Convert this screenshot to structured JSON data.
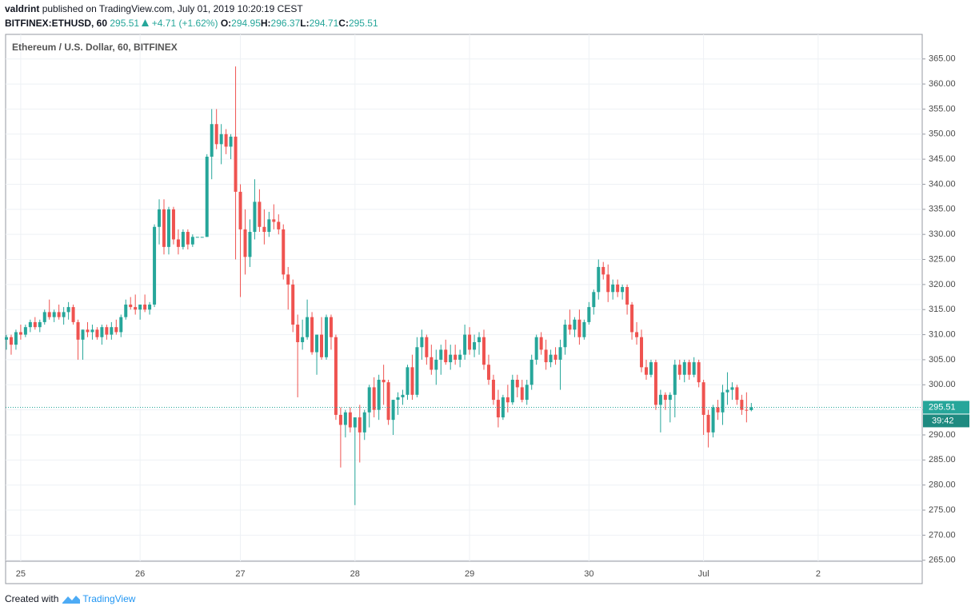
{
  "header": {
    "author": "valdrint",
    "published": "published on TradingView.com, July 01, 2019 10:20:19 CEST",
    "symbol": "BITFINEX:ETHUSD, 60",
    "price": "295.51",
    "change": "+4.71 (+1.62%)",
    "fields": [
      {
        "label": "O:",
        "value": "294.95"
      },
      {
        "label": "H:",
        "value": "296.37"
      },
      {
        "label": "L:",
        "value": "294.71"
      },
      {
        "label": "C:",
        "value": "295.51"
      }
    ]
  },
  "footer": {
    "created": "Created with",
    "brand": "TradingView"
  },
  "chart_data": {
    "type": "candlestick",
    "title": "Ethereum / U.S. Dollar, 60, BITFINEX",
    "up_color": "#26a69a",
    "down_color": "#ef5350",
    "grid": true,
    "last_price": 295.51,
    "countdown": "39:42",
    "ylim": [
      264.8,
      369.9
    ],
    "yticks": [
      {
        "value": 265,
        "label": "265.00"
      },
      {
        "value": 270,
        "label": "270.00"
      },
      {
        "value": 275,
        "label": "275.00"
      },
      {
        "value": 280,
        "label": "280.00"
      },
      {
        "value": 285,
        "label": "285.00"
      },
      {
        "value": 290,
        "label": "290.00"
      },
      {
        "value": 295,
        "label": "295.00"
      },
      {
        "value": 300,
        "label": "300.00"
      },
      {
        "value": 305,
        "label": "305.00"
      },
      {
        "value": 310,
        "label": "310.00"
      },
      {
        "value": 315,
        "label": "315.00"
      },
      {
        "value": 320,
        "label": "320.00"
      },
      {
        "value": 325,
        "label": "325.00"
      },
      {
        "value": 330,
        "label": "330.00"
      },
      {
        "value": 335,
        "label": "335.00"
      },
      {
        "value": 340,
        "label": "340.00"
      },
      {
        "value": 345,
        "label": "345.00"
      },
      {
        "value": 350,
        "label": "350.00"
      },
      {
        "value": 355,
        "label": "355.00"
      },
      {
        "value": 360,
        "label": "360.00"
      },
      {
        "value": 365,
        "label": "365.00"
      }
    ],
    "categories": [
      null,
      null,
      null,
      "25",
      null,
      null,
      null,
      null,
      null,
      null,
      null,
      null,
      null,
      null,
      null,
      null,
      null,
      null,
      null,
      null,
      null,
      null,
      null,
      null,
      null,
      null,
      null,
      null,
      "26",
      null,
      null,
      null,
      null,
      null,
      null,
      null,
      null,
      null,
      null,
      null,
      null,
      null,
      null,
      null,
      null,
      null,
      null,
      null,
      null,
      "27",
      null,
      null,
      null,
      null,
      null,
      null,
      null,
      null,
      null,
      null,
      null,
      null,
      null,
      null,
      null,
      null,
      null,
      null,
      null,
      null,
      null,
      null,
      null,
      "28",
      null,
      null,
      null,
      null,
      null,
      null,
      null,
      null,
      null,
      null,
      null,
      null,
      null,
      null,
      null,
      null,
      null,
      null,
      null,
      null,
      null,
      null,
      null,
      "29",
      null,
      null,
      null,
      null,
      null,
      null,
      null,
      null,
      null,
      null,
      null,
      null,
      null,
      null,
      null,
      null,
      null,
      null,
      null,
      null,
      null,
      null,
      null,
      null,
      "30",
      null,
      null,
      null,
      null,
      null,
      null,
      null,
      null,
      null,
      null,
      null,
      null,
      null,
      null,
      null,
      null,
      null,
      null,
      null,
      null,
      null,
      null,
      null,
      "Jul",
      null,
      null,
      null,
      null,
      null,
      null,
      null,
      null,
      null,
      null,
      null,
      null,
      null,
      null,
      null,
      null,
      null,
      null,
      null,
      null,
      null,
      null,
      null,
      "2"
    ],
    "ohlc": [
      [
        309,
        310,
        307,
        309.5
      ],
      [
        309.5,
        310,
        306,
        308
      ],
      [
        308,
        311,
        307,
        310.5
      ],
      [
        310.5,
        312,
        309,
        310
      ],
      [
        310,
        312,
        309.5,
        311.5
      ],
      [
        311.5,
        313,
        310.5,
        312.5
      ],
      [
        312.5,
        313.5,
        311,
        311.5
      ],
      [
        311.5,
        313,
        310.5,
        312.5
      ],
      [
        312.5,
        315,
        312,
        314.5
      ],
      [
        314.5,
        317,
        313,
        313.5
      ],
      [
        313.5,
        315,
        312.5,
        314.5
      ],
      [
        314.5,
        316,
        313,
        313.5
      ],
      [
        313.5,
        315.5,
        312,
        314.5
      ],
      [
        314.5,
        316.5,
        313,
        315.5
      ],
      [
        315.5,
        316,
        312,
        312.5
      ],
      [
        312.5,
        313,
        305,
        309
      ],
      [
        309,
        311,
        305,
        311
      ],
      [
        311,
        312.5,
        309.5,
        310.5
      ],
      [
        310.5,
        312,
        309,
        311
      ],
      [
        311,
        311.5,
        309,
        309.5
      ],
      [
        309.5,
        312,
        308,
        311.5
      ],
      [
        311.5,
        312,
        309,
        310
      ],
      [
        310,
        312.5,
        309,
        311.5
      ],
      [
        311.5,
        313,
        310,
        310.5
      ],
      [
        310.5,
        314,
        309.5,
        313.5
      ],
      [
        313.5,
        317,
        313,
        316
      ],
      [
        316,
        317.5,
        315,
        315.5
      ],
      [
        315.5,
        318,
        314,
        315
      ],
      [
        315,
        316,
        313,
        316
      ],
      [
        316,
        318,
        314.5,
        315
      ],
      [
        315,
        316.5,
        314,
        316
      ],
      [
        316,
        332,
        315.5,
        331.5
      ],
      [
        331.5,
        337,
        328,
        335
      ],
      [
        335,
        337,
        326,
        327.5
      ],
      [
        327.5,
        335.5,
        326,
        335
      ],
      [
        335,
        335.5,
        328,
        329
      ],
      [
        329,
        331,
        326,
        327.5
      ],
      [
        327.5,
        331,
        327,
        330.5
      ],
      [
        330.5,
        331,
        327,
        328
      ],
      [
        328,
        330,
        327.5,
        329.5
      ],
      [
        329.5,
        329.5,
        329.5,
        329.5
      ],
      [
        329.5,
        329.5,
        329.5,
        329.5
      ],
      [
        329.5,
        346,
        329.5,
        345.5
      ],
      [
        345.5,
        355,
        341,
        352
      ],
      [
        352,
        355,
        347,
        348
      ],
      [
        348,
        352,
        344,
        350
      ],
      [
        350,
        351,
        346,
        347.5
      ],
      [
        347.5,
        350,
        345,
        349.5
      ],
      [
        349.5,
        363.5,
        325,
        338.5
      ],
      [
        338.5,
        340,
        317.5,
        331
      ],
      [
        331,
        335,
        322,
        325.5
      ],
      [
        325.5,
        333,
        323.5,
        330.5
      ],
      [
        330.5,
        341,
        329,
        336.5
      ],
      [
        336.5,
        339,
        330.5,
        331.5
      ],
      [
        331.5,
        335,
        328,
        330.5
      ],
      [
        330.5,
        334.5,
        329.5,
        333
      ],
      [
        333,
        336,
        331,
        332.5
      ],
      [
        332.5,
        334,
        330,
        331
      ],
      [
        331,
        332,
        321,
        322
      ],
      [
        322,
        323.5,
        315,
        320
      ],
      [
        320,
        321,
        310.5,
        312
      ],
      [
        312,
        314,
        297.5,
        308.5
      ],
      [
        308.5,
        313,
        307,
        309.5
      ],
      [
        309.5,
        317,
        309,
        313.5
      ],
      [
        313.5,
        314.5,
        306,
        306.5
      ],
      [
        306.5,
        310,
        302,
        310
      ],
      [
        310,
        313.5,
        305,
        305.5
      ],
      [
        305.5,
        314,
        305,
        313.5
      ],
      [
        313.5,
        314,
        307,
        309.5
      ],
      [
        309.5,
        310,
        293,
        294
      ],
      [
        294,
        295.5,
        283.5,
        292
      ],
      [
        292,
        295,
        289.5,
        294.5
      ],
      [
        294.5,
        295.5,
        290.5,
        291.5
      ],
      [
        291.5,
        293,
        276,
        293.5
      ],
      [
        293.5,
        296,
        284.5,
        290.5
      ],
      [
        290.5,
        295,
        289,
        294.5
      ],
      [
        294.5,
        300,
        291.5,
        299.5
      ],
      [
        299.5,
        301.5,
        293.5,
        295
      ],
      [
        295,
        302,
        293,
        301
      ],
      [
        301,
        304,
        296,
        300.5
      ],
      [
        300.5,
        301,
        292,
        293
      ],
      [
        293,
        297,
        290,
        297
      ],
      [
        297,
        298.5,
        294,
        297.5
      ],
      [
        297.5,
        299,
        296,
        298
      ],
      [
        298,
        304,
        297,
        303.5
      ],
      [
        303.5,
        306,
        297,
        298
      ],
      [
        298,
        309.5,
        297.5,
        307.5
      ],
      [
        307.5,
        311,
        305,
        309.5
      ],
      [
        309.5,
        310,
        304,
        305.5
      ],
      [
        305.5,
        308,
        302,
        303
      ],
      [
        303,
        307,
        300,
        305
      ],
      [
        305,
        308,
        302,
        307
      ],
      [
        307,
        309,
        304,
        304.5
      ],
      [
        304.5,
        308,
        303,
        306
      ],
      [
        306,
        308,
        304,
        305
      ],
      [
        305,
        307,
        303.5,
        306
      ],
      [
        306,
        312,
        305,
        310
      ],
      [
        310,
        311.5,
        306,
        307
      ],
      [
        307,
        310,
        305.5,
        308.5
      ],
      [
        308.5,
        310.5,
        306,
        309.5
      ],
      [
        309.5,
        311,
        303,
        304
      ],
      [
        304,
        306,
        300,
        301
      ],
      [
        301,
        302,
        296,
        297
      ],
      [
        297,
        299,
        291.5,
        293.5
      ],
      [
        293.5,
        298,
        293,
        297.5
      ],
      [
        297.5,
        300,
        294.5,
        296.5
      ],
      [
        296.5,
        302,
        296,
        301
      ],
      [
        301,
        302,
        297.5,
        299.5
      ],
      [
        299.5,
        301,
        296.5,
        297
      ],
      [
        297,
        301,
        296,
        300
      ],
      [
        300,
        306,
        299,
        305
      ],
      [
        305,
        310,
        304,
        309.5
      ],
      [
        309.5,
        310.5,
        306,
        307
      ],
      [
        307,
        309,
        303,
        304.5
      ],
      [
        304.5,
        307,
        303.5,
        306
      ],
      [
        306,
        307.5,
        304,
        305
      ],
      [
        305,
        309,
        299,
        307.5
      ],
      [
        307.5,
        313,
        306,
        312
      ],
      [
        312,
        315,
        310,
        311
      ],
      [
        311,
        313.5,
        309.5,
        313
      ],
      [
        313,
        315,
        308,
        309.5
      ],
      [
        309.5,
        313,
        309,
        312.5
      ],
      [
        312.5,
        316.5,
        312,
        315.5
      ],
      [
        315.5,
        319,
        314,
        318.5
      ],
      [
        318.5,
        325,
        317,
        323.5
      ],
      [
        323.5,
        324.5,
        321,
        322
      ],
      [
        322,
        324,
        316.5,
        318.5
      ],
      [
        318.5,
        321,
        317,
        320
      ],
      [
        320,
        321,
        317.5,
        318.5
      ],
      [
        318.5,
        320,
        317,
        319.5
      ],
      [
        319.5,
        320,
        314,
        316
      ],
      [
        316,
        316.5,
        309,
        310.5
      ],
      [
        310.5,
        312.5,
        308,
        309.5
      ],
      [
        309.5,
        311,
        302.5,
        303.5
      ],
      [
        303.5,
        305,
        301,
        302
      ],
      [
        302,
        305,
        301.5,
        304.5
      ],
      [
        304.5,
        305,
        295,
        296
      ],
      [
        296,
        299,
        290.5,
        298
      ],
      [
        298,
        298.5,
        295,
        297
      ],
      [
        297,
        298.5,
        292.5,
        298
      ],
      [
        298,
        305,
        293.5,
        304
      ],
      [
        304,
        305,
        301,
        302
      ],
      [
        302,
        305,
        300.5,
        304.5
      ],
      [
        304.5,
        305,
        301,
        302
      ],
      [
        302,
        305.5,
        301.5,
        304.5
      ],
      [
        304.5,
        305,
        299.5,
        300.5
      ],
      [
        300.5,
        301,
        290,
        294
      ],
      [
        294,
        295,
        287.5,
        290.5
      ],
      [
        290.5,
        296,
        289.5,
        295.5
      ],
      [
        295.5,
        297,
        293,
        294.5
      ],
      [
        294.5,
        300,
        292,
        298.5
      ],
      [
        298.5,
        302.5,
        296,
        299
      ],
      [
        299,
        300.5,
        297,
        299.5
      ],
      [
        299.5,
        300,
        296,
        297
      ],
      [
        297,
        298,
        294,
        295
      ],
      [
        295,
        298.5,
        292.5,
        294.95
      ],
      [
        294.95,
        296.37,
        294.71,
        295.51
      ],
      null,
      null,
      null,
      null,
      null,
      null,
      null,
      null,
      null,
      null,
      null,
      null,
      null,
      null
    ]
  }
}
